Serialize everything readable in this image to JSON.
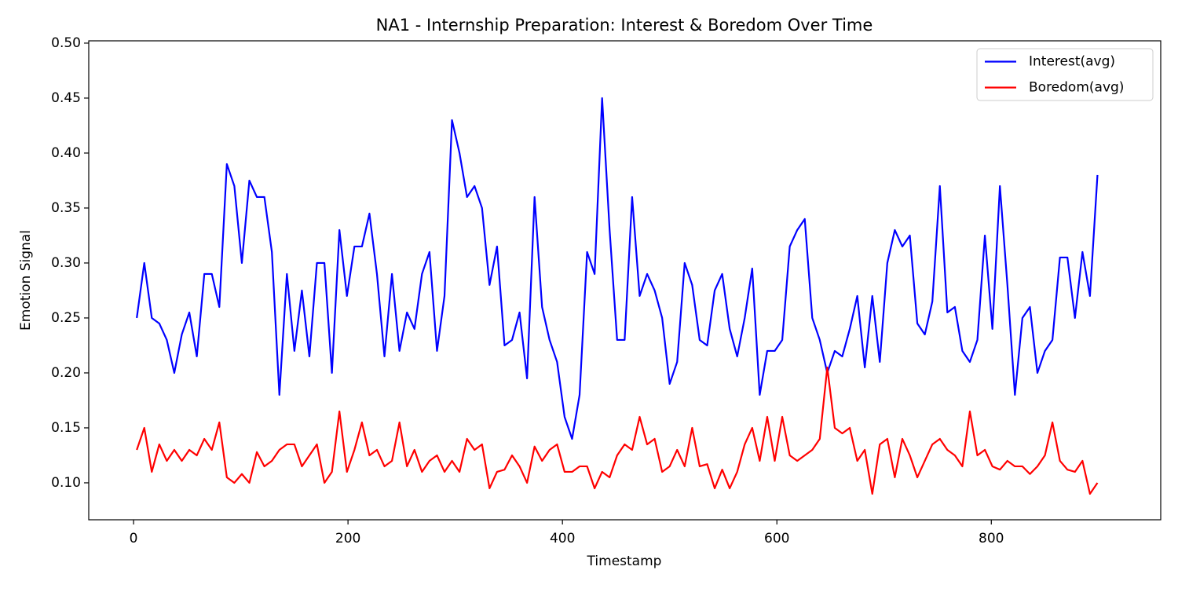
{
  "chart_data": {
    "type": "line",
    "title": "NA1 - Internship Preparation: Interest & Boredom Over Time",
    "x_label": "Timestamp",
    "y_label": "Emotion Signal",
    "x": [
      3,
      10,
      17,
      24,
      31,
      38,
      45,
      52,
      59,
      66,
      73,
      80,
      87,
      94,
      101,
      108,
      115,
      122,
      129,
      136,
      143,
      150,
      157,
      164,
      171,
      178,
      185,
      192,
      199,
      206,
      213,
      220,
      227,
      234,
      241,
      248,
      255,
      262,
      269,
      276,
      283,
      290,
      297,
      304,
      311,
      318,
      325,
      332,
      339,
      346,
      353,
      360,
      367,
      374,
      381,
      388,
      395,
      402,
      409,
      416,
      423,
      430,
      437,
      444,
      451,
      458,
      465,
      472,
      479,
      486,
      493,
      500,
      507,
      514,
      521,
      528,
      535,
      542,
      549,
      556,
      563,
      570,
      577,
      584,
      591,
      598,
      605,
      612,
      619,
      626,
      633,
      640,
      647,
      654,
      661,
      668,
      675,
      682,
      689,
      696,
      703,
      710,
      717,
      724,
      731,
      738,
      745,
      752,
      759,
      766,
      773,
      780,
      787,
      794,
      801,
      808,
      815,
      822,
      829,
      836,
      843,
      850,
      857,
      864,
      871,
      878,
      885,
      892,
      899
    ],
    "series": [
      {
        "name": "Interest(avg)",
        "color": "#0000ff",
        "values": [
          0.25,
          0.3,
          0.25,
          0.245,
          0.23,
          0.2,
          0.235,
          0.255,
          0.215,
          0.29,
          0.29,
          0.26,
          0.39,
          0.37,
          0.3,
          0.375,
          0.36,
          0.36,
          0.31,
          0.18,
          0.29,
          0.22,
          0.275,
          0.215,
          0.3,
          0.3,
          0.2,
          0.33,
          0.27,
          0.315,
          0.315,
          0.345,
          0.29,
          0.215,
          0.29,
          0.22,
          0.255,
          0.24,
          0.29,
          0.31,
          0.22,
          0.27,
          0.43,
          0.4,
          0.36,
          0.37,
          0.35,
          0.28,
          0.315,
          0.225,
          0.23,
          0.255,
          0.195,
          0.36,
          0.26,
          0.23,
          0.21,
          0.16,
          0.14,
          0.18,
          0.31,
          0.29,
          0.45,
          0.33,
          0.23,
          0.23,
          0.36,
          0.27,
          0.29,
          0.275,
          0.25,
          0.19,
          0.21,
          0.3,
          0.28,
          0.23,
          0.225,
          0.275,
          0.29,
          0.24,
          0.215,
          0.25,
          0.295,
          0.18,
          0.22,
          0.22,
          0.23,
          0.315,
          0.33,
          0.34,
          0.25,
          0.23,
          0.2,
          0.22,
          0.215,
          0.24,
          0.27,
          0.205,
          0.27,
          0.21,
          0.3,
          0.33,
          0.315,
          0.325,
          0.245,
          0.235,
          0.265,
          0.37,
          0.255,
          0.26,
          0.22,
          0.21,
          0.23,
          0.325,
          0.24,
          0.37,
          0.28,
          0.18,
          0.25,
          0.26,
          0.2,
          0.22,
          0.23,
          0.305,
          0.305,
          0.25,
          0.31,
          0.27,
          0.38
        ]
      },
      {
        "name": "Boredom(avg)",
        "color": "#ff0000",
        "values": [
          0.13,
          0.15,
          0.11,
          0.135,
          0.12,
          0.13,
          0.12,
          0.13,
          0.125,
          0.14,
          0.13,
          0.155,
          0.105,
          0.1,
          0.108,
          0.1,
          0.128,
          0.115,
          0.12,
          0.13,
          0.135,
          0.135,
          0.115,
          0.125,
          0.135,
          0.1,
          0.11,
          0.165,
          0.11,
          0.13,
          0.155,
          0.125,
          0.13,
          0.115,
          0.12,
          0.155,
          0.115,
          0.13,
          0.11,
          0.12,
          0.125,
          0.11,
          0.12,
          0.11,
          0.14,
          0.13,
          0.135,
          0.095,
          0.11,
          0.112,
          0.125,
          0.115,
          0.1,
          0.133,
          0.12,
          0.13,
          0.135,
          0.11,
          0.11,
          0.115,
          0.115,
          0.095,
          0.11,
          0.105,
          0.125,
          0.135,
          0.13,
          0.16,
          0.135,
          0.14,
          0.11,
          0.115,
          0.13,
          0.115,
          0.15,
          0.115,
          0.117,
          0.095,
          0.112,
          0.095,
          0.11,
          0.135,
          0.15,
          0.12,
          0.16,
          0.12,
          0.16,
          0.125,
          0.12,
          0.125,
          0.13,
          0.14,
          0.205,
          0.15,
          0.145,
          0.15,
          0.12,
          0.13,
          0.09,
          0.135,
          0.14,
          0.105,
          0.14,
          0.125,
          0.105,
          0.12,
          0.135,
          0.14,
          0.13,
          0.125,
          0.115,
          0.165,
          0.125,
          0.13,
          0.115,
          0.112,
          0.12,
          0.115,
          0.115,
          0.108,
          0.115,
          0.125,
          0.155,
          0.12,
          0.112,
          0.11,
          0.12,
          0.09,
          0.1
        ]
      }
    ],
    "xlim": [
      -41.8,
      958
    ],
    "ylim": [
      0.0664,
      0.5021
    ],
    "xticks": [
      0,
      200,
      400,
      600,
      800
    ],
    "yticks": [
      {
        "value": 0.1,
        "label": "0.10"
      },
      0.15,
      {
        "value": 0.2,
        "label": "0.20"
      },
      0.25,
      {
        "value": 0.3,
        "label": "0.30"
      },
      0.35,
      {
        "value": 0.4,
        "label": "0.40"
      },
      0.45,
      {
        "value": 0.5,
        "label": "0.50"
      }
    ],
    "grid": false,
    "legend": "upper right"
  }
}
